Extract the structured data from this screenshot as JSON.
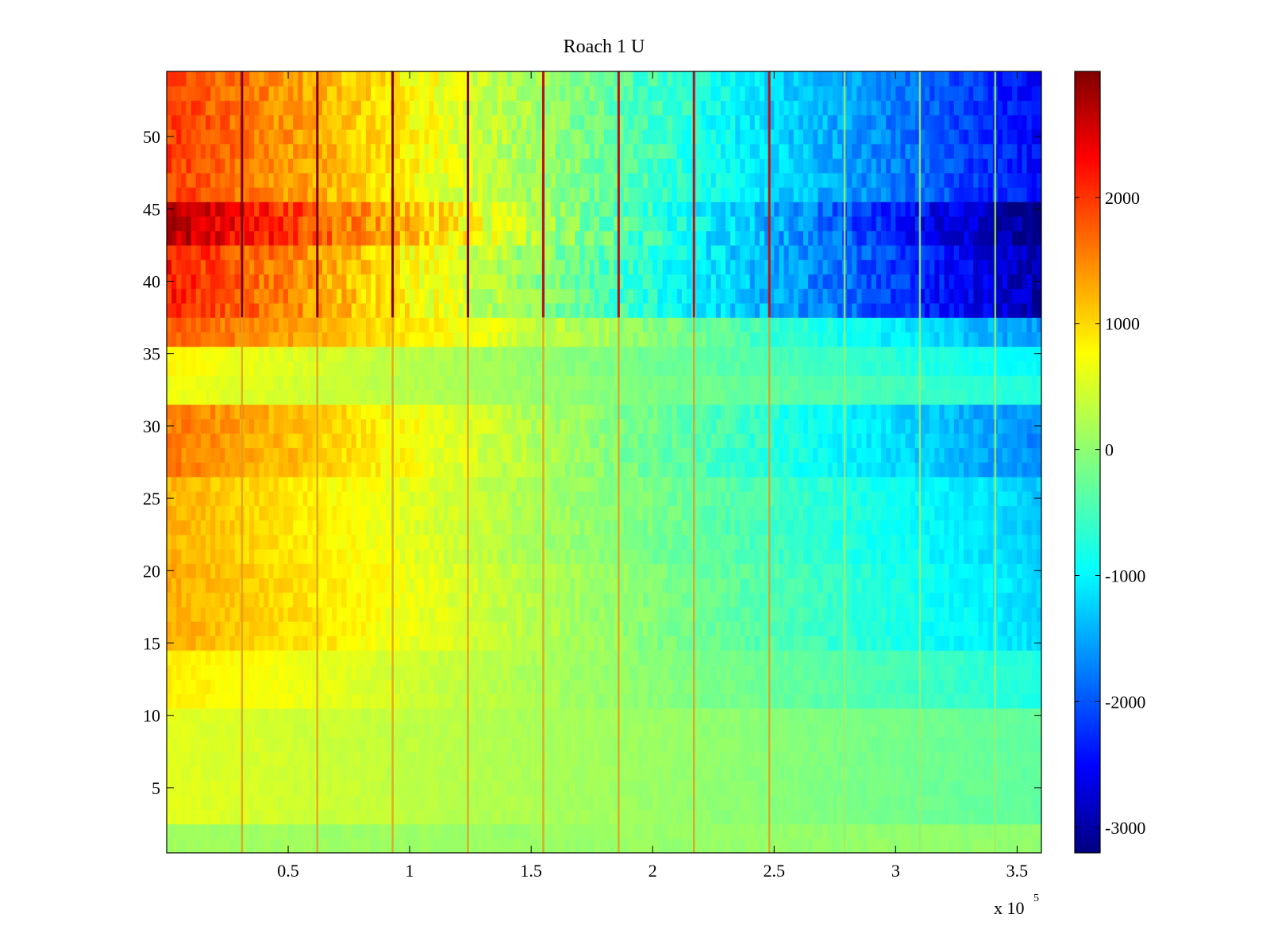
{
  "chart_data": {
    "type": "heatmap",
    "title": "Roach 1 U",
    "xlabel": "",
    "ylabel": "",
    "colormap": "jet",
    "x_range": [
      0,
      360000
    ],
    "y_range": [
      0.5,
      54.5
    ],
    "x_multiplier": {
      "base": "x 10",
      "exponent": "5"
    },
    "x_ticks": [
      {
        "value": 50000,
        "label": "0.5"
      },
      {
        "value": 100000,
        "label": "1"
      },
      {
        "value": 150000,
        "label": "1.5"
      },
      {
        "value": 200000,
        "label": "2"
      },
      {
        "value": 250000,
        "label": "2.5"
      },
      {
        "value": 300000,
        "label": "3"
      },
      {
        "value": 350000,
        "label": "3.5"
      }
    ],
    "y_ticks": [
      {
        "value": 5,
        "label": "5"
      },
      {
        "value": 10,
        "label": "10"
      },
      {
        "value": 15,
        "label": "15"
      },
      {
        "value": 20,
        "label": "20"
      },
      {
        "value": 25,
        "label": "25"
      },
      {
        "value": 30,
        "label": "30"
      },
      {
        "value": 35,
        "label": "35"
      },
      {
        "value": 40,
        "label": "40"
      },
      {
        "value": 45,
        "label": "45"
      },
      {
        "value": 50,
        "label": "50"
      }
    ],
    "colorbar": {
      "range": [
        -3200,
        3000
      ],
      "ticks": [
        {
          "value": 2000,
          "label": "2000"
        },
        {
          "value": 1000,
          "label": "1000"
        },
        {
          "value": 0,
          "label": "0"
        },
        {
          "value": -1000,
          "label": "-1000"
        },
        {
          "value": -2000,
          "label": "-2000"
        },
        {
          "value": -3000,
          "label": "-3000"
        }
      ]
    },
    "row_groups": [
      {
        "rows": [
          1,
          2
        ],
        "start": 100,
        "end": 0
      },
      {
        "rows": [
          3,
          10
        ],
        "start": 500,
        "end": -300
      },
      {
        "rows": [
          11,
          14
        ],
        "start": 800,
        "end": -700
      },
      {
        "rows": [
          15,
          20
        ],
        "start": 1200,
        "end": -1100
      },
      {
        "rows": [
          21,
          26
        ],
        "start": 1150,
        "end": -1200
      },
      {
        "rows": [
          27,
          31
        ],
        "start": 1500,
        "end": -1600
      },
      {
        "rows": [
          32,
          33
        ],
        "start": 600,
        "end": -700
      },
      {
        "rows": [
          34,
          35
        ],
        "start": 700,
        "end": -900
      },
      {
        "rows": [
          36,
          37
        ],
        "start": 1700,
        "end": -1500
      },
      {
        "rows": [
          38,
          42
        ],
        "start": 2100,
        "end": -2900
      },
      {
        "rows": [
          43,
          45
        ],
        "start": 2700,
        "end": -3200
      },
      {
        "rows": [
          46,
          54
        ],
        "start": 1900,
        "end": -2400
      }
    ],
    "vertical_artifact_x": [
      31000,
      62000,
      93000,
      124000,
      155000,
      186000,
      217000,
      248000,
      279000,
      310000,
      341000
    ]
  }
}
